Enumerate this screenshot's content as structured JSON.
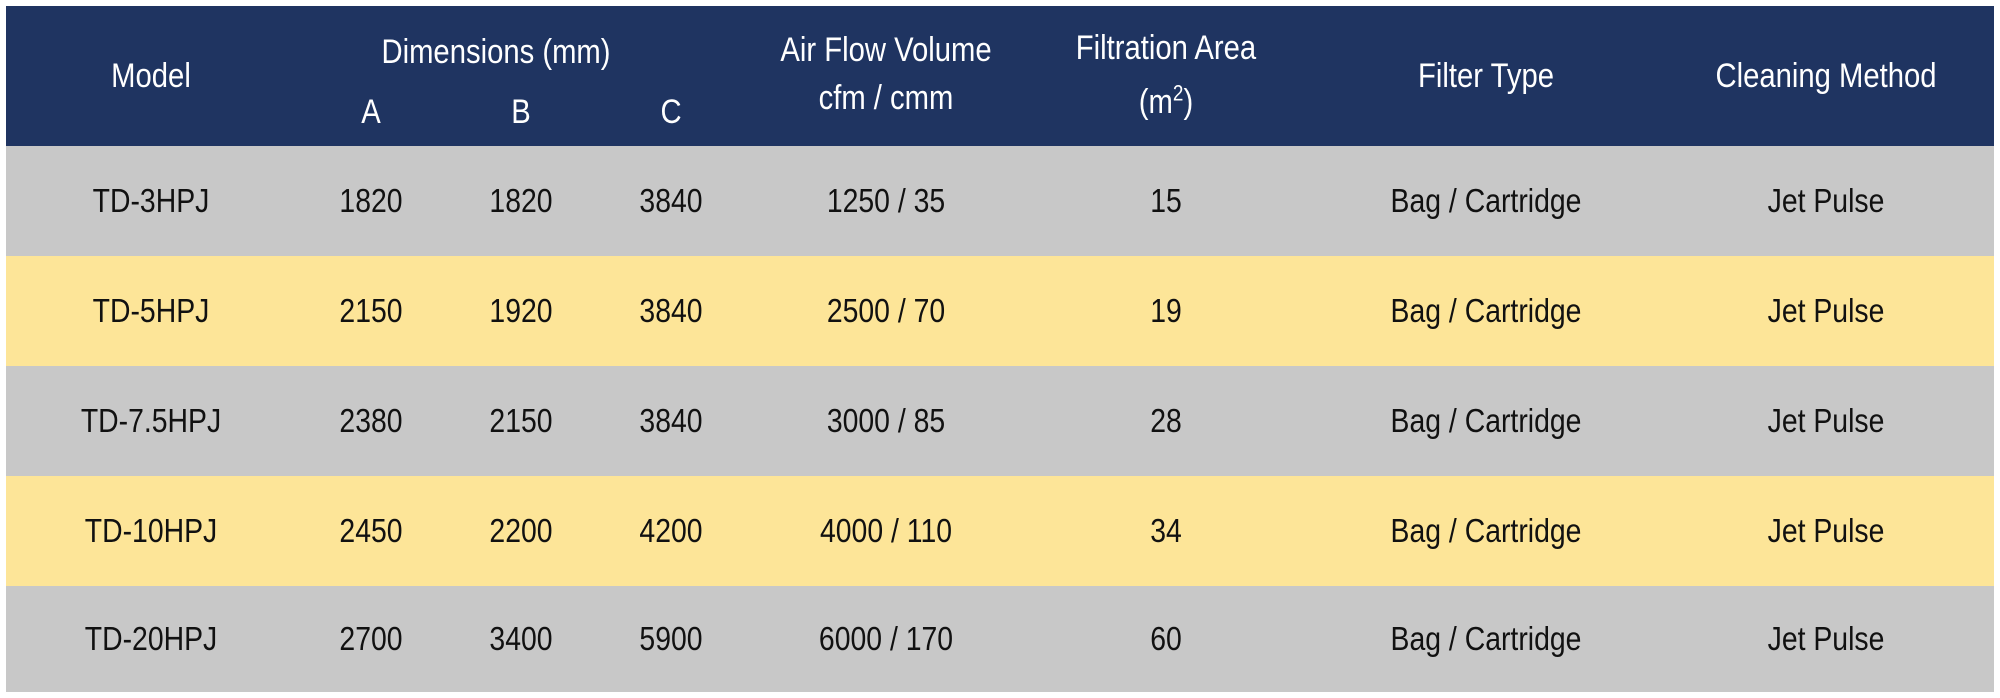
{
  "header": {
    "model": "Model",
    "dimensions": "Dimensions (mm)",
    "dim_a": "A",
    "dim_b": "B",
    "dim_c": "C",
    "airflow_line1": "Air Flow Volume",
    "airflow_line2": "cfm / cmm",
    "filtration_line1": "Filtration Area",
    "filtration_unit": "m",
    "filtration_exp": "2",
    "filter_type": "Filter Type",
    "cleaning_method": "Cleaning Method"
  },
  "colors": {
    "header_bg": "#1f3461",
    "row_grey": "#c8c8c8",
    "row_yellow": "#fde598"
  },
  "rows": [
    {
      "model": "TD-3HPJ",
      "a": "1820",
      "b": "1820",
      "c": "3840",
      "airflow": "1250 / 35",
      "area": "15",
      "filter": "Bag / Cartridge",
      "cleaning": "Jet Pulse"
    },
    {
      "model": "TD-5HPJ",
      "a": "2150",
      "b": "1920",
      "c": "3840",
      "airflow": "2500 / 70",
      "area": "19",
      "filter": "Bag / Cartridge",
      "cleaning": "Jet Pulse"
    },
    {
      "model": "TD-7.5HPJ",
      "a": "2380",
      "b": "2150",
      "c": "3840",
      "airflow": "3000 / 85",
      "area": "28",
      "filter": "Bag / Cartridge",
      "cleaning": "Jet Pulse"
    },
    {
      "model": "TD-10HPJ",
      "a": "2450",
      "b": "2200",
      "c": "4200",
      "airflow": "4000 / 110",
      "area": "34",
      "filter": "Bag / Cartridge",
      "cleaning": "Jet Pulse"
    },
    {
      "model": "TD-20HPJ",
      "a": "2700",
      "b": "3400",
      "c": "5900",
      "airflow": "6000 / 170",
      "area": "60",
      "filter": "Bag / Cartridge",
      "cleaning": "Jet Pulse"
    }
  ]
}
